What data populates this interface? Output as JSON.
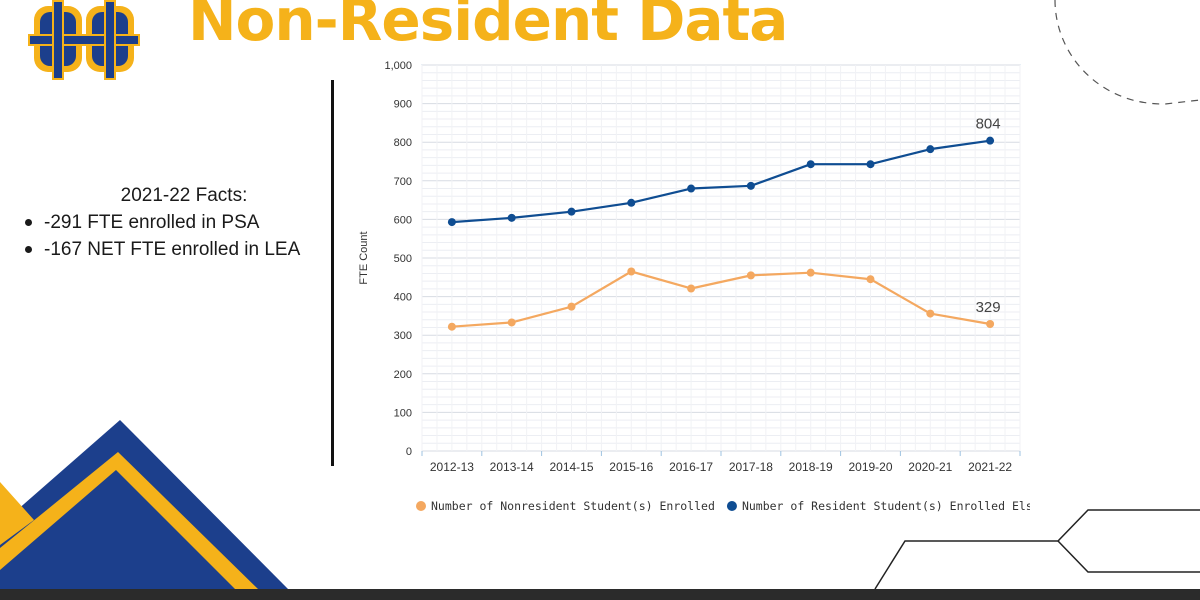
{
  "slide": {
    "title": "Non-Resident Data",
    "logo_text": "GH",
    "facts": {
      "heading": "2021-22 Facts:",
      "items": [
        "-291 FTE enrolled in PSA",
        "-167 NET FTE enrolled in LEA"
      ]
    }
  },
  "colors": {
    "title": "#f5b21a",
    "navy": "#1c3f8c",
    "gold": "#f5b21a",
    "series_nonresident": "#f4a860",
    "series_resident": "#0f4d92"
  },
  "chart_data": {
    "type": "line",
    "title": "",
    "xlabel": "",
    "ylabel": "FTE Count",
    "ylim": [
      0,
      1000
    ],
    "ytick_step": 100,
    "ytick_labels": [
      "0",
      "100",
      "200",
      "300",
      "400",
      "500",
      "600",
      "700",
      "800",
      "900",
      "1,000"
    ],
    "categories": [
      "2012-13",
      "2013-14",
      "2014-15",
      "2015-16",
      "2016-17",
      "2017-18",
      "2018-19",
      "2019-20",
      "2020-21",
      "2021-22"
    ],
    "series": [
      {
        "name": "Number of Nonresident Student(s) Enrolled",
        "color": "#f4a860",
        "values": [
          322,
          333,
          374,
          465,
          421,
          455,
          462,
          445,
          356,
          329
        ],
        "end_label": "329"
      },
      {
        "name": "Number of Resident Student(s) Enrolled Elsewhere",
        "color": "#0f4d92",
        "values": [
          593,
          604,
          620,
          643,
          680,
          687,
          743,
          743,
          782,
          804
        ],
        "end_label": "804"
      }
    ],
    "legend_position": "bottom"
  }
}
